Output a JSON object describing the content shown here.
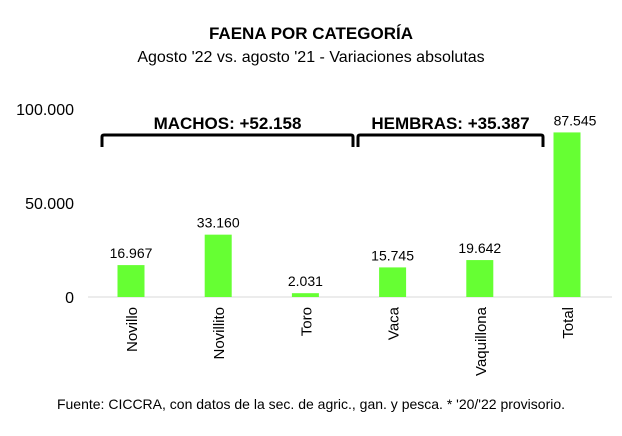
{
  "chart_data": {
    "type": "bar",
    "title": "FAENA POR CATEGORÍA",
    "subtitle": "Agosto '22 vs. agosto '21 - Variaciones absolutas",
    "categories": [
      "Novillo",
      "Novillito",
      "Toro",
      "Vaca",
      "Vaquillona",
      "Total"
    ],
    "values": [
      16967,
      33160,
      2031,
      15745,
      19642,
      87545
    ],
    "value_labels": [
      "16.967",
      "33.160",
      "2.031",
      "15.745",
      "19.642",
      "87.545"
    ],
    "ylim": [
      0,
      100000
    ],
    "yticks": [
      0,
      50000,
      100000
    ],
    "ytick_labels": [
      "0",
      "50.000",
      "100.000"
    ],
    "grid": false,
    "bar_color": "#66ff33",
    "annotations": [
      {
        "text": "MACHOS: +52.158",
        "spans": [
          "Novillo",
          "Novillito",
          "Toro"
        ]
      },
      {
        "text": "HEMBRAS: +35.387",
        "spans": [
          "Vaca",
          "Vaquillona"
        ]
      }
    ],
    "source": "Fuente: CICCRA, con datos de la sec. de agric., gan. y pesca. * '20/'22 provisorio."
  }
}
